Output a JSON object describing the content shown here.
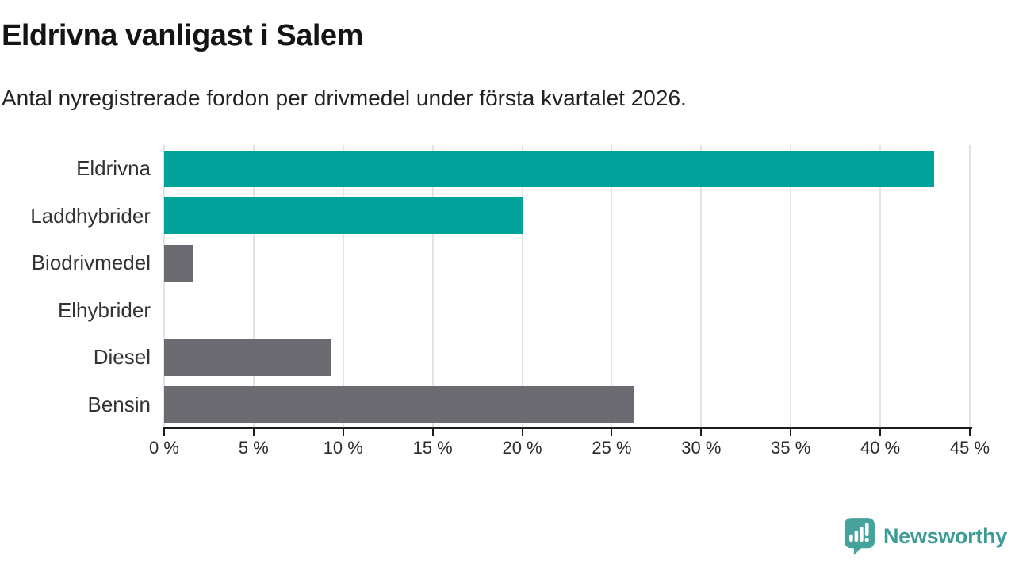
{
  "chart_data": {
    "type": "bar",
    "orientation": "horizontal",
    "title": "Eldrivna vanligast i Salem",
    "subtitle": "Antal nyregistrerade fordon per drivmedel under första kvartalet 2026.",
    "categories": [
      "Eldrivna",
      "Laddhybrider",
      "Biodrivmedel",
      "Elhybrider",
      "Diesel",
      "Bensin"
    ],
    "values": [
      43,
      20,
      1.6,
      0,
      9.3,
      26.2
    ],
    "value_unit": "%",
    "xlabel": "",
    "ylabel": "",
    "xlim": [
      0,
      45
    ],
    "xticks": [
      {
        "value": 0,
        "label": "0 %"
      },
      {
        "value": 5,
        "label": "5 %"
      },
      {
        "value": 10,
        "label": "10 %"
      },
      {
        "value": 15,
        "label": "15 %"
      },
      {
        "value": 20,
        "label": "20 %"
      },
      {
        "value": 25,
        "label": "25 %"
      },
      {
        "value": 30,
        "label": "30 %"
      },
      {
        "value": 35,
        "label": "35 %"
      },
      {
        "value": 40,
        "label": "40 %"
      },
      {
        "value": 45,
        "label": "45 %"
      }
    ],
    "bar_colors": [
      "#00a29a",
      "#00a29a",
      "#6c6b72",
      "#6c6b72",
      "#6c6b72",
      "#6c6b72"
    ],
    "grid": true,
    "legend": "none"
  },
  "branding": {
    "logo_text": "Newsworthy",
    "logo_color": "#3d9b96",
    "logo_icon": "newsworthy-speech-bubble-bar-chart-icon"
  },
  "colors": {
    "electric_teal": "#00a29a",
    "fossil_gray": "#6c6b72",
    "axis": "#1c1c1c",
    "gridline": "#e3e3e3",
    "label_text": "#333333",
    "background": "#ffffff"
  }
}
